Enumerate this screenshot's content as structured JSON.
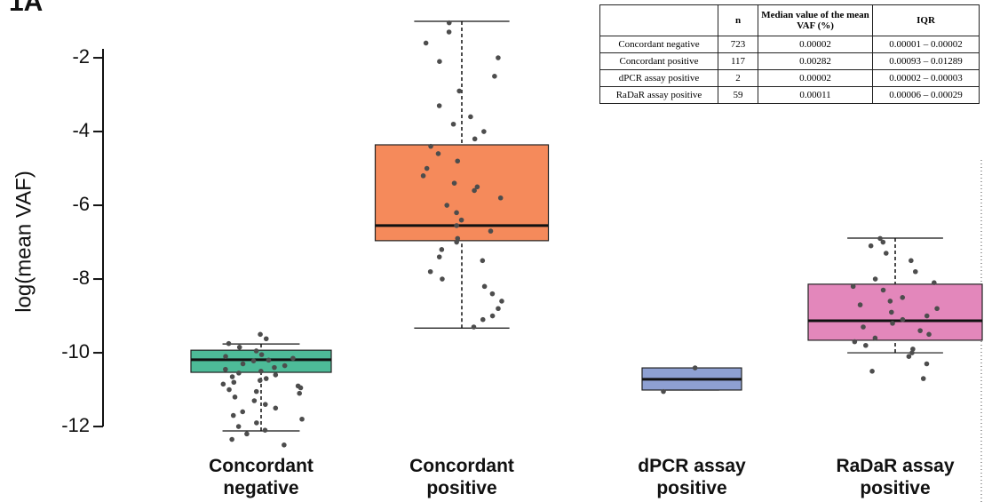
{
  "panel_label": "1A",
  "chart_data": {
    "type": "box",
    "ylabel": "log(mean VAF)",
    "ylim": [
      -12.3,
      -0.9
    ],
    "yticks": [
      -12,
      -10,
      -8,
      -6,
      -4,
      -2
    ],
    "categories": [
      "Concordant negative",
      "Concordant positive",
      "dPCR assay positive",
      "RaDaR assay positive"
    ],
    "point_color": "#4d4d4d",
    "boxes": [
      {
        "color": "#4dbb98",
        "whislo": -12.12,
        "q1": -10.53,
        "med": -10.19,
        "q3": -9.93,
        "whishi": -9.76,
        "points": [
          -9.5,
          -9.62,
          -9.75,
          -9.85,
          -9.95,
          -10.05,
          -10.1,
          -10.15,
          -10.2,
          -10.22,
          -10.3,
          -10.35,
          -10.4,
          -10.45,
          -10.5,
          -10.55,
          -10.6,
          -10.65,
          -10.7,
          -10.75,
          -10.8,
          -10.85,
          -10.9,
          -10.95,
          -11.0,
          -11.05,
          -11.1,
          -11.2,
          -11.3,
          -11.4,
          -11.5,
          -11.6,
          -11.7,
          -11.8,
          -11.9,
          -12.0,
          -12.1,
          -12.2,
          -12.35,
          -12.5
        ]
      },
      {
        "color": "#f58a5b",
        "whislo": -9.33,
        "q1": -6.96,
        "med": -6.55,
        "q3": -4.36,
        "whishi": -1.01,
        "points": [
          -1.05,
          -1.3,
          -1.6,
          -2.0,
          -2.1,
          -2.5,
          -2.9,
          -3.3,
          -3.6,
          -3.8,
          -4.0,
          -4.2,
          -4.4,
          -4.6,
          -4.8,
          -5.0,
          -5.2,
          -5.4,
          -5.5,
          -5.6,
          -5.8,
          -6.0,
          -6.2,
          -6.4,
          -6.55,
          -6.7,
          -6.9,
          -7.0,
          -7.2,
          -7.4,
          -7.5,
          -7.8,
          -8.0,
          -8.2,
          -8.4,
          -8.6,
          -8.8,
          -9.0,
          -9.1,
          -9.3
        ]
      },
      {
        "color": "#8ea0d2",
        "whislo": -11.01,
        "q1": -11.01,
        "med": -10.72,
        "q3": -10.41,
        "whishi": -10.41,
        "points": [
          -10.41,
          -11.05
        ]
      },
      {
        "color": "#e387bb",
        "whislo": -10.0,
        "q1": -9.66,
        "med": -9.13,
        "q3": -8.14,
        "whishi": -6.89,
        "points": [
          -6.9,
          -7.0,
          -7.1,
          -7.3,
          -7.5,
          -7.8,
          -8.0,
          -8.1,
          -8.2,
          -8.3,
          -8.5,
          -8.6,
          -8.7,
          -8.8,
          -8.9,
          -9.0,
          -9.1,
          -9.2,
          -9.3,
          -9.4,
          -9.5,
          -9.6,
          -9.7,
          -9.8,
          -9.9,
          -10.0,
          -10.1,
          -10.3,
          -10.5,
          -10.7
        ]
      }
    ]
  },
  "table": {
    "columns": [
      "n",
      "Median value of the mean VAF (%)",
      "IQR"
    ],
    "rows": [
      [
        "Concordant negative",
        723,
        2e-05,
        "0.00001 – 0.00002"
      ],
      [
        "Concordant positive",
        117,
        0.00282,
        "0.00093 – 0.01289"
      ],
      [
        "dPCR assay positive",
        2,
        2e-05,
        "0.00002 – 0.00003"
      ],
      [
        "RaDaR assay positive",
        59,
        0.00011,
        "0.00006 – 0.00029"
      ]
    ]
  }
}
